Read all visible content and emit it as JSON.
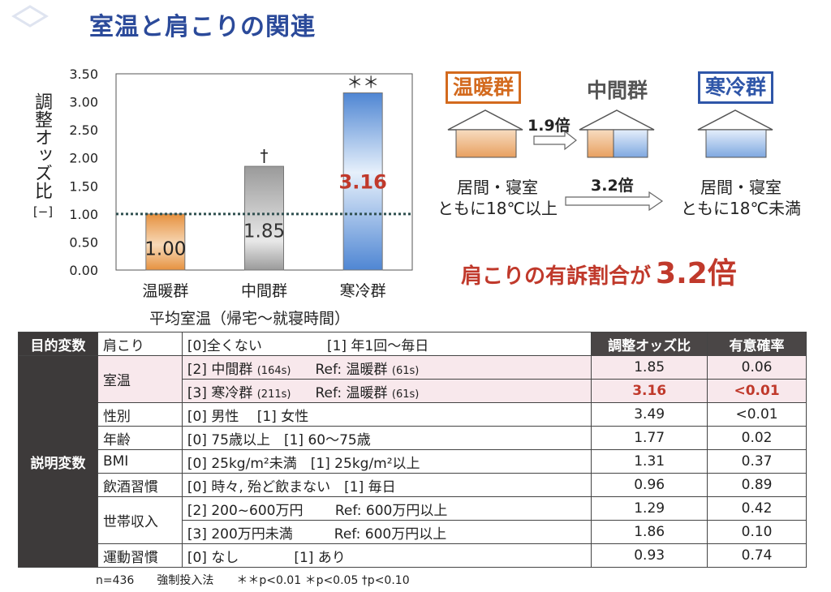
{
  "title": "室温と肩こりの関連",
  "chart_data": {
    "type": "bar",
    "ylabel": "調整オッズ比[−]",
    "ylabel_main": "調整オッズ比",
    "ylabel_unit": "[−]",
    "xlabel": "平均室温（帰宅〜就寝時間）",
    "categories": [
      "温暖群",
      "中間群",
      "寒冷群"
    ],
    "values": [
      1.0,
      1.85,
      3.16
    ],
    "value_labels": [
      "1.00",
      "1.85",
      "3.16"
    ],
    "significance": [
      "",
      "†",
      "＊＊"
    ],
    "ylim": [
      0,
      3.5
    ],
    "yticks": [
      "0.00",
      "0.50",
      "1.00",
      "1.50",
      "2.00",
      "2.50",
      "3.00",
      "3.50"
    ],
    "reference_line": 1.0,
    "colors": [
      "#e8a060",
      "#a8a8a8",
      "#5a8fd6"
    ]
  },
  "diagram": {
    "warm_label": "温暖群",
    "mid_label": "中間群",
    "cold_label": "寒冷群",
    "mult_small": "1.9倍",
    "mult_large": "3.2倍",
    "warm_desc_1": "居間・寝室",
    "warm_desc_2": "ともに18℃以上",
    "cold_desc_1": "居間・寝室",
    "cold_desc_2": "ともに18℃未満",
    "headline_text": "肩こりの有訴割合が",
    "headline_value": "3.2倍"
  },
  "table": {
    "head_dep": "目的変数",
    "dep_var": "肩こり",
    "dep_def_0": "[0]全くない",
    "dep_def_1": "[1] 年1回〜毎日",
    "col_or": "調整オッズ比",
    "col_p": "有意確率",
    "expl_label": "説明変数",
    "rows": [
      {
        "var": "室温",
        "def_a": "[2] 中間群",
        "def_n": "(164s)",
        "def_b": "Ref: 温暖群",
        "def_bn": "(61s)",
        "or": "1.85",
        "p": "0.06"
      },
      {
        "var": "",
        "def_a": "[3] 寒冷群",
        "def_n": "(211s)",
        "def_b": "Ref: 温暖群",
        "def_bn": "(61s)",
        "or": "3.16",
        "p": "<0.01"
      },
      {
        "var": "性別",
        "def": "[0] 男性　 [1] 女性",
        "or": "3.49",
        "p": "<0.01"
      },
      {
        "var": "年齢",
        "def": "[0] 75歳以上　[1] 60〜75歳",
        "or": "1.77",
        "p": "0.02"
      },
      {
        "var": "BMI",
        "def": "[0] 25kg/m²未満　[1] 25kg/m²以上",
        "or": "1.31",
        "p": "0.37"
      },
      {
        "var": "飲酒習慣",
        "def": "[0] 時々, 殆ど飲まない　[1] 毎日",
        "or": "0.96",
        "p": "0.89"
      },
      {
        "var": "世帯収入",
        "def": "[2] 200~600万円　　 Ref: 600万円以上",
        "or": "1.29",
        "p": "0.42"
      },
      {
        "var": "",
        "def": "[3] 200万円未満　　　Ref: 600万円以上",
        "or": "1.86",
        "p": "0.10"
      },
      {
        "var": "運動習慣",
        "def": "[0] なし　　　　[1] あり",
        "or": "0.93",
        "p": "0.74"
      }
    ]
  },
  "footnote": {
    "n": "n=436",
    "method": "強制投入法",
    "sig": "＊＊p<0.01 ＊p<0.05 †p<0.10"
  }
}
